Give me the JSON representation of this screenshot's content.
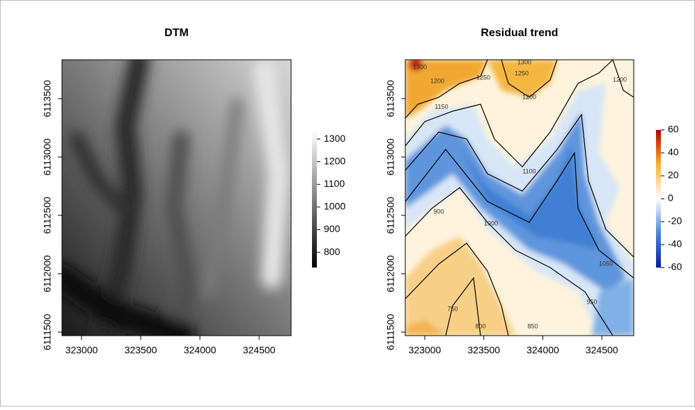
{
  "panels": [
    {
      "title": "DTM",
      "xlim": [
        322835,
        324770
      ],
      "ylim": [
        6111470,
        6113833
      ],
      "xticks": [
        323000,
        323500,
        324000,
        324500
      ],
      "yticks": [
        6111500,
        6112000,
        6112500,
        6113000,
        6113500
      ],
      "legend": {
        "lim": [
          733,
          1340
        ],
        "ticks": [
          800,
          900,
          1000,
          1100,
          1200,
          1300
        ],
        "colors": [
          "#000000",
          "#ffffff"
        ]
      },
      "contour_labels": []
    },
    {
      "title": "Residual trend",
      "xlim": [
        322835,
        324770
      ],
      "ylim": [
        6111470,
        6113833
      ],
      "xticks": [
        323000,
        323500,
        324000,
        324500
      ],
      "yticks": [
        6111500,
        6112000,
        6112500,
        6113000,
        6113500
      ],
      "legend": {
        "lim": [
          -60,
          60
        ],
        "ticks": [
          -60,
          -40,
          -20,
          0,
          20,
          40,
          60
        ],
        "colors": [
          "#0a1aa8",
          "#4a86d8",
          "#ffffff",
          "#f5b030",
          "#b80000"
        ]
      },
      "contour_labels": [
        1300,
        1300,
        1250,
        1250,
        1200,
        1150,
        1200,
        1200,
        1100,
        900,
        1000,
        1050,
        750,
        800,
        850,
        950
      ]
    }
  ]
}
